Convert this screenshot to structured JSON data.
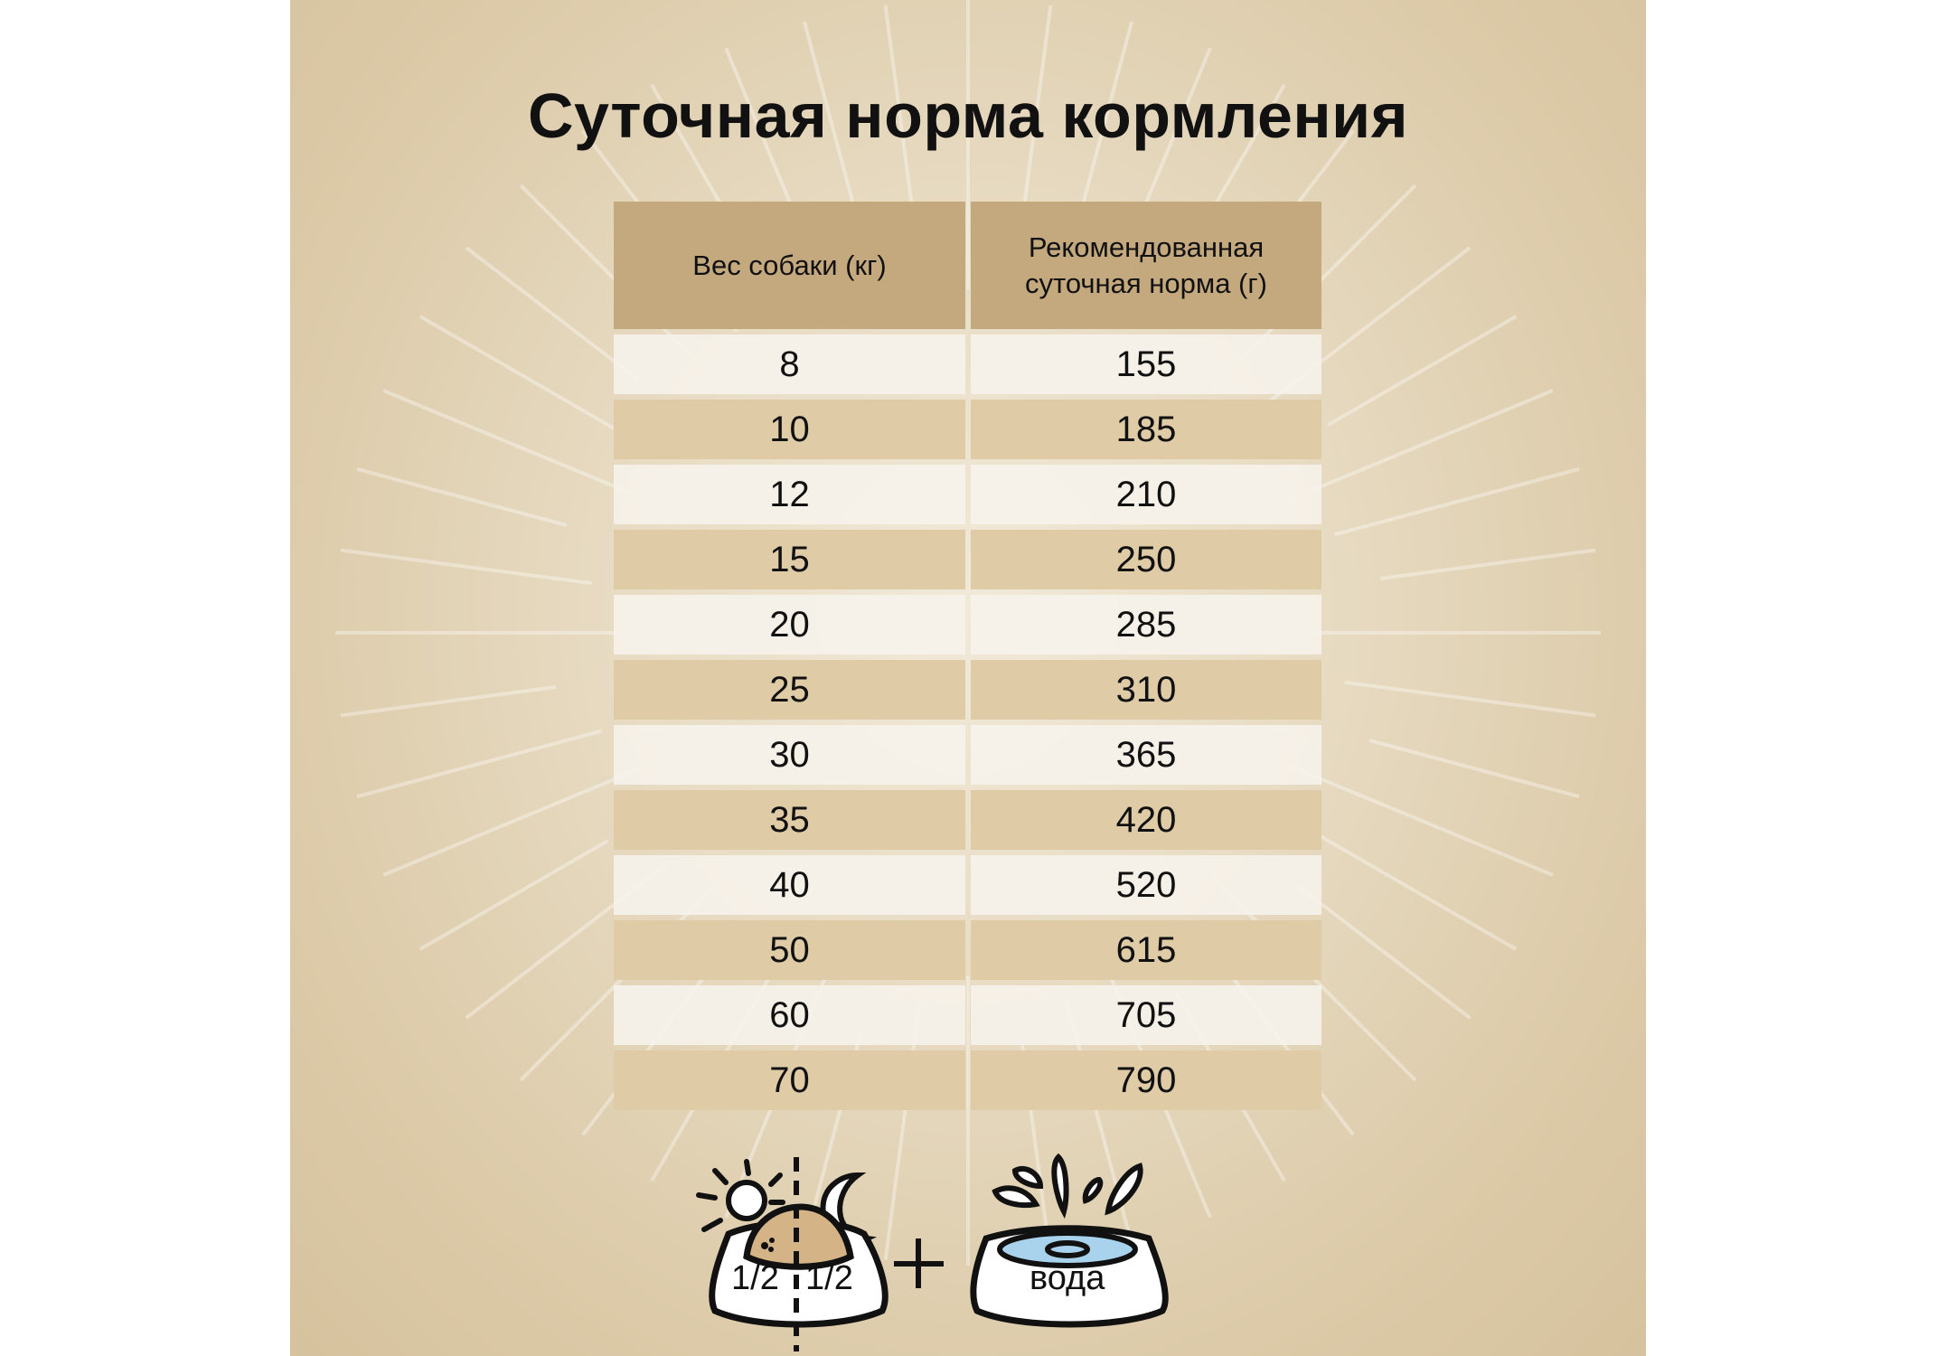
{
  "title": "Суточная норма кормления",
  "table": {
    "headers": [
      "Вес собаки (кг)",
      "Рекомендованная суточная норма (г)"
    ],
    "rows": [
      [
        "8",
        "155"
      ],
      [
        "10",
        "185"
      ],
      [
        "12",
        "210"
      ],
      [
        "15",
        "250"
      ],
      [
        "20",
        "285"
      ],
      [
        "25",
        "310"
      ],
      [
        "30",
        "365"
      ],
      [
        "35",
        "420"
      ],
      [
        "40",
        "520"
      ],
      [
        "50",
        "615"
      ],
      [
        "60",
        "705"
      ],
      [
        "70",
        "790"
      ]
    ]
  },
  "feeding": {
    "morning_portion": "1/2",
    "evening_portion": "1/2",
    "water_label": "вода",
    "icons": [
      "sun-icon",
      "moon-icon",
      "food-bowl-icon",
      "plus-icon",
      "water-bowl-icon"
    ]
  },
  "colors": {
    "header": "#c4a87e",
    "row_dark": "#e0cba7",
    "row_light": "#f6f2ea",
    "food": "#d4b486",
    "water": "#a9d3ec"
  }
}
